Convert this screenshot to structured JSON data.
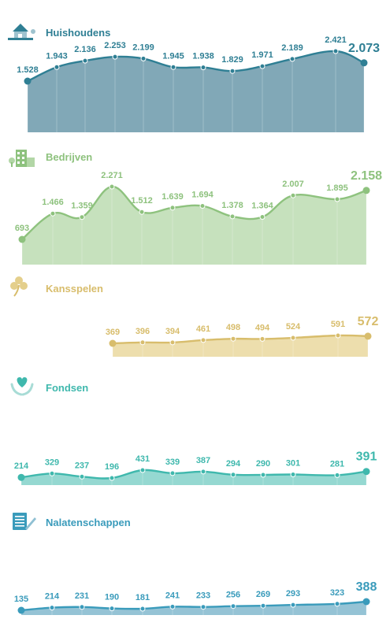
{
  "chart_data": [
    {
      "type": "area",
      "title": "Huishoudens",
      "icon": "house-icon",
      "color": "#2f7f94",
      "fill": "#7aa3b3",
      "values": [
        1528,
        1943,
        2136,
        2253,
        2199,
        1945,
        1938,
        1829,
        1971,
        2189,
        2421,
        2073
      ],
      "labels": [
        "1.528",
        "1.943",
        "2.136",
        "2.253",
        "2.199",
        "1.945",
        "1.938",
        "1.829",
        "1.971",
        "2.189",
        "2.421",
        "2.073"
      ]
    },
    {
      "type": "area",
      "title": "Bedrijven",
      "icon": "office-building-icon",
      "color": "#8ec27e",
      "fill": "#c3dfb9",
      "values": [
        693,
        1466,
        1359,
        2271,
        1512,
        1639,
        1694,
        1378,
        1364,
        2007,
        1895,
        2158
      ],
      "labels": [
        "693",
        "1.466",
        "1.359",
        "2.271",
        "1.512",
        "1.639",
        "1.694",
        "1.378",
        "1.364",
        "2.007",
        "1.895",
        "2.158"
      ]
    },
    {
      "type": "area",
      "title": "Kansspelen",
      "icon": "clover-icon",
      "color": "#d8bd6c",
      "fill": "#ecdca9",
      "values": [
        369,
        396,
        394,
        461,
        498,
        494,
        524,
        591,
        572
      ],
      "labels": [
        "369",
        "396",
        "394",
        "461",
        "498",
        "494",
        "524",
        "591",
        "572"
      ]
    },
    {
      "type": "area",
      "title": "Fondsen",
      "icon": "heart-hands-icon",
      "color": "#3fb8ad",
      "fill": "#8fd6cf",
      "values": [
        214,
        329,
        237,
        196,
        431,
        339,
        387,
        294,
        290,
        301,
        281,
        391
      ],
      "labels": [
        "214",
        "329",
        "237",
        "196",
        "431",
        "339",
        "387",
        "294",
        "290",
        "301",
        "281",
        "391"
      ]
    },
    {
      "type": "area",
      "title": "Nalatenschappen",
      "icon": "document-pen-icon",
      "color": "#3a9bbb",
      "fill": "#8fc0d3",
      "values": [
        135,
        214,
        231,
        190,
        181,
        241,
        233,
        256,
        269,
        293,
        323,
        388
      ],
      "labels": [
        "135",
        "214",
        "231",
        "190",
        "181",
        "241",
        "233",
        "256",
        "269",
        "293",
        "323",
        "388"
      ]
    }
  ]
}
